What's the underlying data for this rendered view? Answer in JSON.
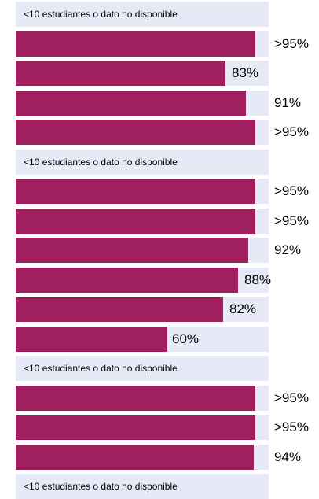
{
  "chart_data": {
    "type": "bar",
    "orientation": "horizontal",
    "colors": {
      "bar": "#a01f5f",
      "track": "#e8e9f7",
      "text": "#000000"
    },
    "no_data_text": "<10 estudiantes o dato no disponible",
    "rows": [
      {
        "value": null,
        "label": "<10 estudiantes o dato no disponible"
      },
      {
        "value": 96,
        "label": ">95%"
      },
      {
        "value": 83,
        "label": "83%"
      },
      {
        "value": 91,
        "label": "91%"
      },
      {
        "value": 96,
        "label": ">95%"
      },
      {
        "value": null,
        "label": "<10 estudiantes o dato no disponible"
      },
      {
        "value": 96,
        "label": ">95%"
      },
      {
        "value": 96,
        "label": ">95%"
      },
      {
        "value": 92,
        "label": "92%"
      },
      {
        "value": 88,
        "label": "88%"
      },
      {
        "value": 82,
        "label": "82%"
      },
      {
        "value": 60,
        "label": "60%"
      },
      {
        "value": null,
        "label": "<10 estudiantes o dato no disponible"
      },
      {
        "value": 96,
        "label": ">95%"
      },
      {
        "value": 96,
        "label": ">95%"
      },
      {
        "value": 94,
        "label": "94%"
      },
      {
        "value": null,
        "label": "<10 estudiantes o dato no disponible"
      }
    ],
    "xlim": [
      0,
      100
    ]
  }
}
